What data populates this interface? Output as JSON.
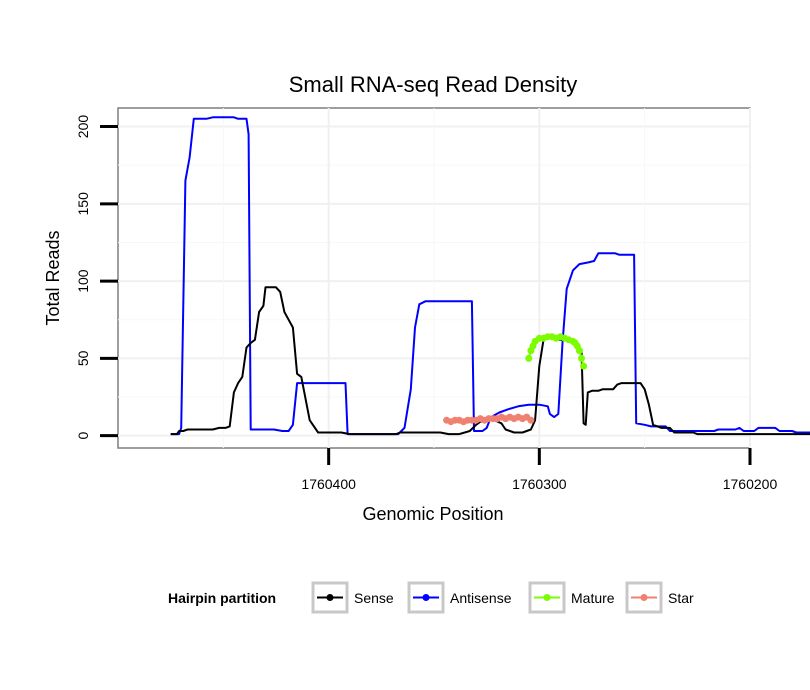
{
  "chart_data": {
    "type": "line",
    "title": "Small RNA-seq Read Density",
    "xlabel": "Genomic Position",
    "ylabel": "Total Reads",
    "x_reversed": true,
    "xlim": [
      1760500,
      1760200
    ],
    "ylim": [
      -8,
      212
    ],
    "x_ticks": [
      1760400,
      1760300,
      1760200
    ],
    "x_tick_labels": [
      "1760400",
      "1760300",
      "1760200"
    ],
    "y_ticks": [
      0,
      50,
      100,
      150,
      200
    ],
    "y_tick_labels": [
      "0",
      "50",
      "100",
      "150",
      "200"
    ],
    "grid": true,
    "legend": {
      "title": "Hairpin partition",
      "position": "bottom",
      "entries": [
        {
          "name": "Sense",
          "color": "#000000"
        },
        {
          "name": "Antisense",
          "color": "#0000ff"
        },
        {
          "name": "Mature",
          "color": "#7cfc00"
        },
        {
          "name": "Star",
          "color": "#f08070"
        }
      ]
    },
    "series": [
      {
        "name": "Antisense",
        "color": "#0000ff",
        "style": "line",
        "points": [
          [
            1760475,
            1
          ],
          [
            1760471,
            1
          ],
          [
            1760470,
            5
          ],
          [
            1760468,
            165
          ],
          [
            1760466,
            180
          ],
          [
            1760464,
            205
          ],
          [
            1760458,
            205
          ],
          [
            1760455,
            206
          ],
          [
            1760445,
            206
          ],
          [
            1760443,
            205
          ],
          [
            1760439,
            205
          ],
          [
            1760438,
            195
          ],
          [
            1760437,
            4
          ],
          [
            1760426,
            4
          ],
          [
            1760422,
            3
          ],
          [
            1760419,
            3
          ],
          [
            1760417,
            7
          ],
          [
            1760415,
            34
          ],
          [
            1760392,
            34
          ],
          [
            1760391,
            1
          ],
          [
            1760384,
            1
          ],
          [
            1760367,
            1
          ],
          [
            1760364,
            5
          ],
          [
            1760361,
            30
          ],
          [
            1760359,
            70
          ],
          [
            1760357,
            85
          ],
          [
            1760354,
            87
          ],
          [
            1760332,
            87
          ],
          [
            1760331,
            3
          ],
          [
            1760327,
            3
          ],
          [
            1760325,
            5
          ],
          [
            1760323,
            12
          ],
          [
            1760319,
            15
          ],
          [
            1760315,
            17
          ],
          [
            1760310,
            19
          ],
          [
            1760305,
            20
          ],
          [
            1760300,
            20
          ],
          [
            1760296,
            19
          ],
          [
            1760295,
            14
          ],
          [
            1760293,
            12
          ],
          [
            1760291,
            14
          ],
          [
            1760289,
            60
          ],
          [
            1760287,
            95
          ],
          [
            1760284,
            107
          ],
          [
            1760281,
            111
          ],
          [
            1760277,
            112
          ],
          [
            1760274,
            113
          ],
          [
            1760272,
            118
          ],
          [
            1760264,
            118
          ],
          [
            1760262,
            117
          ],
          [
            1760255,
            117
          ],
          [
            1760254,
            8
          ],
          [
            1760250,
            7
          ],
          [
            1760247,
            6
          ],
          [
            1760240,
            6
          ],
          [
            1760238,
            3
          ],
          [
            1760217,
            3
          ],
          [
            1760215,
            4
          ],
          [
            1760207,
            4
          ],
          [
            1760205,
            5
          ],
          [
            1760203,
            3
          ],
          [
            1760198,
            3
          ],
          [
            1760196,
            5
          ],
          [
            1760188,
            5
          ],
          [
            1760186,
            3
          ],
          [
            1760180,
            3
          ],
          [
            1760178,
            2
          ],
          [
            1760168,
            2
          ]
        ]
      },
      {
        "name": "Sense",
        "color": "#000000",
        "style": "line",
        "points": [
          [
            1760475,
            1
          ],
          [
            1760472,
            1
          ],
          [
            1760471,
            3
          ],
          [
            1760469,
            3
          ],
          [
            1760467,
            4
          ],
          [
            1760460,
            4
          ],
          [
            1760455,
            4
          ],
          [
            1760452,
            5
          ],
          [
            1760449,
            5
          ],
          [
            1760447,
            6
          ],
          [
            1760445,
            28
          ],
          [
            1760443,
            34
          ],
          [
            1760441,
            38
          ],
          [
            1760439,
            57
          ],
          [
            1760437,
            60
          ],
          [
            1760435,
            62
          ],
          [
            1760433,
            80
          ],
          [
            1760431,
            84
          ],
          [
            1760430,
            96
          ],
          [
            1760425,
            96
          ],
          [
            1760423,
            93
          ],
          [
            1760421,
            80
          ],
          [
            1760419,
            75
          ],
          [
            1760417,
            70
          ],
          [
            1760415,
            40
          ],
          [
            1760413,
            38
          ],
          [
            1760409,
            10
          ],
          [
            1760405,
            2
          ],
          [
            1760400,
            2
          ],
          [
            1760394,
            2
          ],
          [
            1760390,
            1
          ],
          [
            1760368,
            1
          ],
          [
            1760366,
            2
          ],
          [
            1760347,
            2
          ],
          [
            1760343,
            1
          ],
          [
            1760338,
            1
          ],
          [
            1760333,
            3
          ],
          [
            1760330,
            7
          ],
          [
            1760328,
            9
          ],
          [
            1760325,
            10
          ],
          [
            1760323,
            11
          ],
          [
            1760318,
            8
          ],
          [
            1760316,
            4
          ],
          [
            1760312,
            2
          ],
          [
            1760308,
            2
          ],
          [
            1760304,
            4
          ],
          [
            1760302,
            10
          ],
          [
            1760300,
            45
          ],
          [
            1760298,
            62
          ],
          [
            1760296,
            64
          ],
          [
            1760293,
            63
          ],
          [
            1760290,
            62
          ],
          [
            1760287,
            62
          ],
          [
            1760284,
            60
          ],
          [
            1760282,
            58
          ],
          [
            1760280,
            55
          ],
          [
            1760279,
            8
          ],
          [
            1760278,
            7
          ],
          [
            1760277,
            28
          ],
          [
            1760275,
            29
          ],
          [
            1760272,
            29
          ],
          [
            1760270,
            30
          ],
          [
            1760265,
            30
          ],
          [
            1760263,
            33
          ],
          [
            1760261,
            34
          ],
          [
            1760252,
            34
          ],
          [
            1760250,
            30
          ],
          [
            1760248,
            20
          ],
          [
            1760246,
            7
          ],
          [
            1760242,
            5
          ],
          [
            1760238,
            5
          ],
          [
            1760236,
            2
          ],
          [
            1760227,
            2
          ],
          [
            1760225,
            1
          ],
          [
            1760168,
            1
          ]
        ]
      },
      {
        "name": "Star",
        "color": "#f08070",
        "style": "points",
        "points": [
          [
            1760344,
            10
          ],
          [
            1760342,
            9
          ],
          [
            1760340,
            10
          ],
          [
            1760338,
            10
          ],
          [
            1760336,
            9
          ],
          [
            1760334,
            10
          ],
          [
            1760332,
            10
          ],
          [
            1760330,
            10
          ],
          [
            1760328,
            11
          ],
          [
            1760326,
            10
          ],
          [
            1760324,
            11
          ],
          [
            1760322,
            11
          ],
          [
            1760320,
            11
          ],
          [
            1760318,
            12
          ],
          [
            1760316,
            11
          ],
          [
            1760314,
            12
          ],
          [
            1760312,
            11
          ],
          [
            1760310,
            12
          ],
          [
            1760308,
            11
          ],
          [
            1760306,
            12
          ],
          [
            1760304,
            10
          ]
        ]
      },
      {
        "name": "Mature",
        "color": "#7cfc00",
        "style": "points",
        "points": [
          [
            1760305,
            50
          ],
          [
            1760304,
            55
          ],
          [
            1760303,
            58
          ],
          [
            1760302,
            61
          ],
          [
            1760300,
            63
          ],
          [
            1760298,
            63
          ],
          [
            1760296,
            64
          ],
          [
            1760294,
            64
          ],
          [
            1760292,
            63
          ],
          [
            1760290,
            64
          ],
          [
            1760288,
            63
          ],
          [
            1760286,
            62
          ],
          [
            1760284,
            61
          ],
          [
            1760283,
            60
          ],
          [
            1760282,
            58
          ],
          [
            1760281,
            55
          ],
          [
            1760280,
            50
          ],
          [
            1760279,
            45
          ]
        ]
      }
    ]
  }
}
